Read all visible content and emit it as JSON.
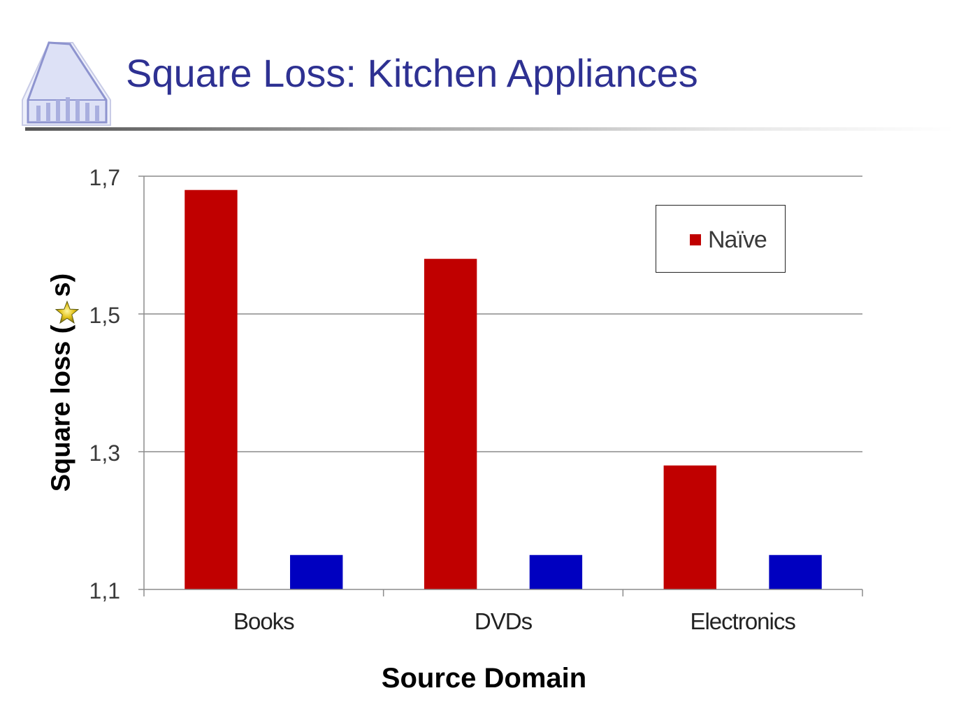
{
  "slide": {
    "title": "Square Loss: Kitchen Appliances"
  },
  "chart_data": {
    "type": "bar",
    "categories": [
      "Books",
      "DVDs",
      "Electronics"
    ],
    "series": [
      {
        "name": "Naïve",
        "color": "#c00000",
        "values": [
          1.68,
          1.58,
          1.28
        ]
      },
      {
        "color": "#0000c0",
        "values": [
          1.15,
          1.15,
          1.15
        ]
      }
    ],
    "ylim": [
      1.1,
      1.7
    ],
    "yticks": [
      1.1,
      1.3,
      1.5,
      1.7
    ],
    "ytick_labels": [
      "1,1",
      "1,3",
      "1,5",
      "1,7"
    ],
    "xlabel": "Source Domain",
    "ylabel_before": "Square loss (",
    "ylabel_after": "s)",
    "ylabel_icon": "star-icon",
    "grid": true,
    "legend_position": "top-right"
  }
}
